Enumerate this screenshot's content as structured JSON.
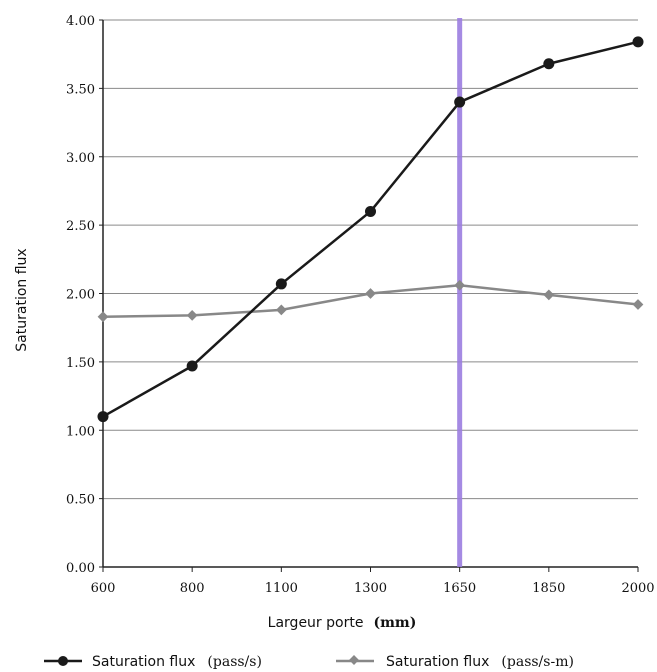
{
  "chart_data": {
    "type": "line",
    "categories": [
      "600",
      "800",
      "1100",
      "1300",
      "1650",
      "1850",
      "2000"
    ],
    "xlabel": "Largeur porte",
    "xlabel_unit": "(mm)",
    "ylabel": "Saturation flux",
    "ylim": [
      0,
      4
    ],
    "yticks": [
      "0.00",
      "0.50",
      "1.00",
      "1.50",
      "2.00",
      "2.50",
      "3.00",
      "3.50",
      "4.00"
    ],
    "ytick_values": [
      0,
      0.5,
      1,
      1.5,
      2,
      2.5,
      3,
      3.5,
      4
    ],
    "grid": "horizontal",
    "legend_position": "bottom",
    "highlight": {
      "category": "1650",
      "color": "#9b7de0"
    },
    "series": [
      {
        "name": "Saturation flux",
        "unit": "(pass/s)",
        "color": "#1a1a1a",
        "marker": "circle",
        "values": [
          1.1,
          1.47,
          2.07,
          2.6,
          3.4,
          3.68,
          3.84
        ]
      },
      {
        "name": "Saturation flux",
        "unit": "(pass/s-m)",
        "color": "#888888",
        "marker": "diamond",
        "values": [
          1.83,
          1.84,
          1.88,
          2.0,
          2.06,
          1.99,
          1.92
        ]
      }
    ]
  }
}
